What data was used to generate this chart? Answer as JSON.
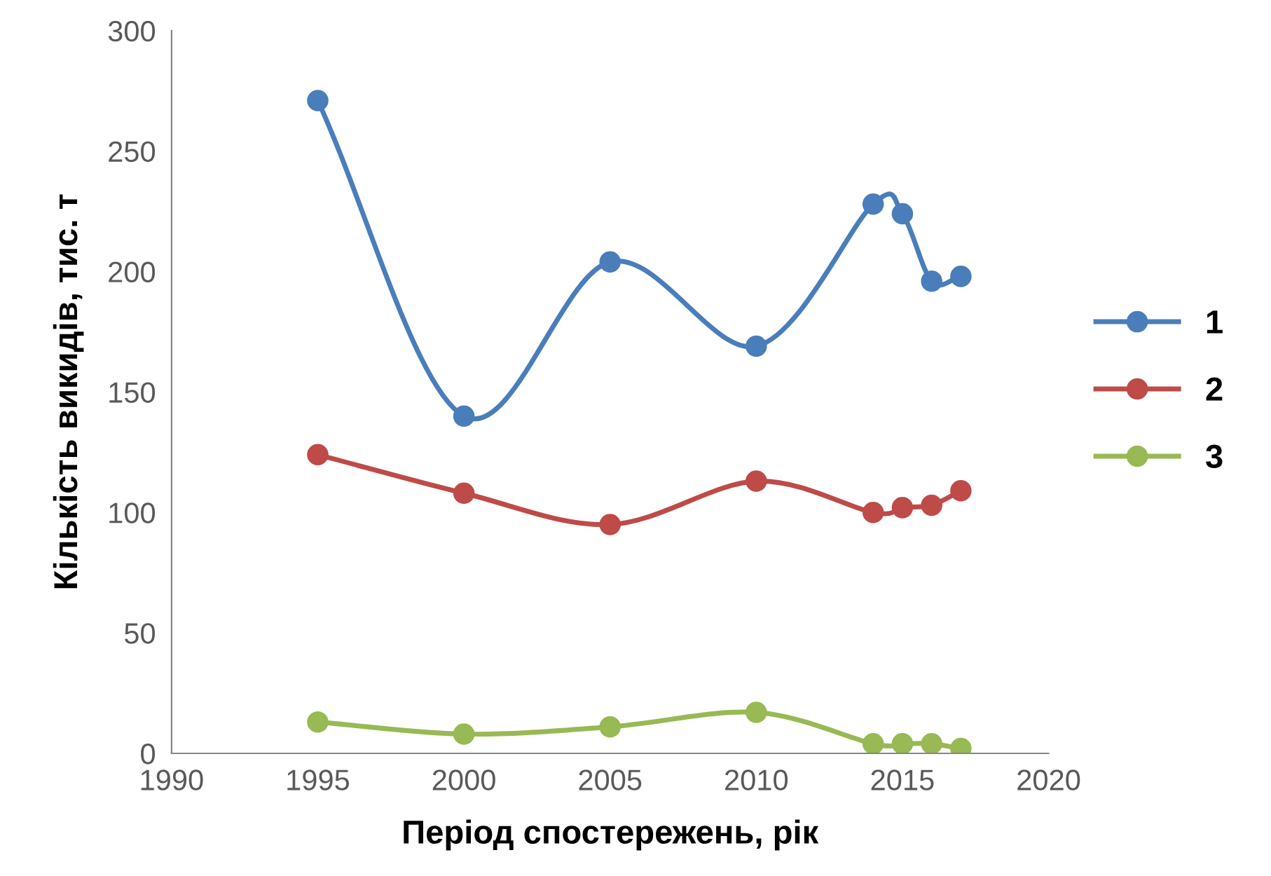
{
  "chart_data": {
    "type": "line",
    "xlabel": "Період спостережень, рік",
    "ylabel": "Кількість викидів, тис. т",
    "x": [
      1995,
      2000,
      2005,
      2010,
      2014,
      2015,
      2016,
      2017
    ],
    "series": [
      {
        "name": "1",
        "color": "#4a7ebb",
        "values": [
          271,
          140,
          204,
          169,
          228,
          224,
          196,
          198
        ]
      },
      {
        "name": "2",
        "color": "#be4b48",
        "values": [
          124,
          108,
          95,
          113,
          100,
          102,
          103,
          109
        ]
      },
      {
        "name": "3",
        "color": "#98b954",
        "values": [
          13,
          8,
          11,
          17,
          4,
          4,
          4,
          2
        ]
      }
    ],
    "xlim": [
      1990,
      2020
    ],
    "xticks": [
      1990,
      1995,
      2000,
      2005,
      2010,
      2015,
      2020
    ],
    "ylim": [
      0,
      300
    ],
    "yticks": [
      0,
      50,
      100,
      150,
      200,
      250,
      300
    ],
    "grid": false,
    "legend": "right",
    "marker": "circle",
    "line_style": "solid"
  }
}
